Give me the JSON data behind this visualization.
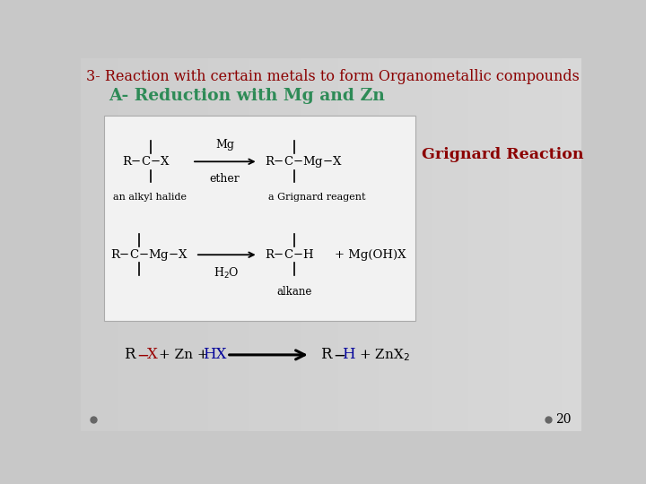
{
  "title": "3- Reaction with certain metals to form Organometallic compounds",
  "subtitle": "A- Reduction with Mg and Zn",
  "title_color": "#8B0000",
  "subtitle_color": "#2E8B57",
  "grignard_label": "Grignard Reaction",
  "grignard_color": "#8B0000",
  "bg_color": "#c8c8c8",
  "box_facecolor": "#f0f0f0",
  "page_number": "20",
  "font_family": "serif"
}
